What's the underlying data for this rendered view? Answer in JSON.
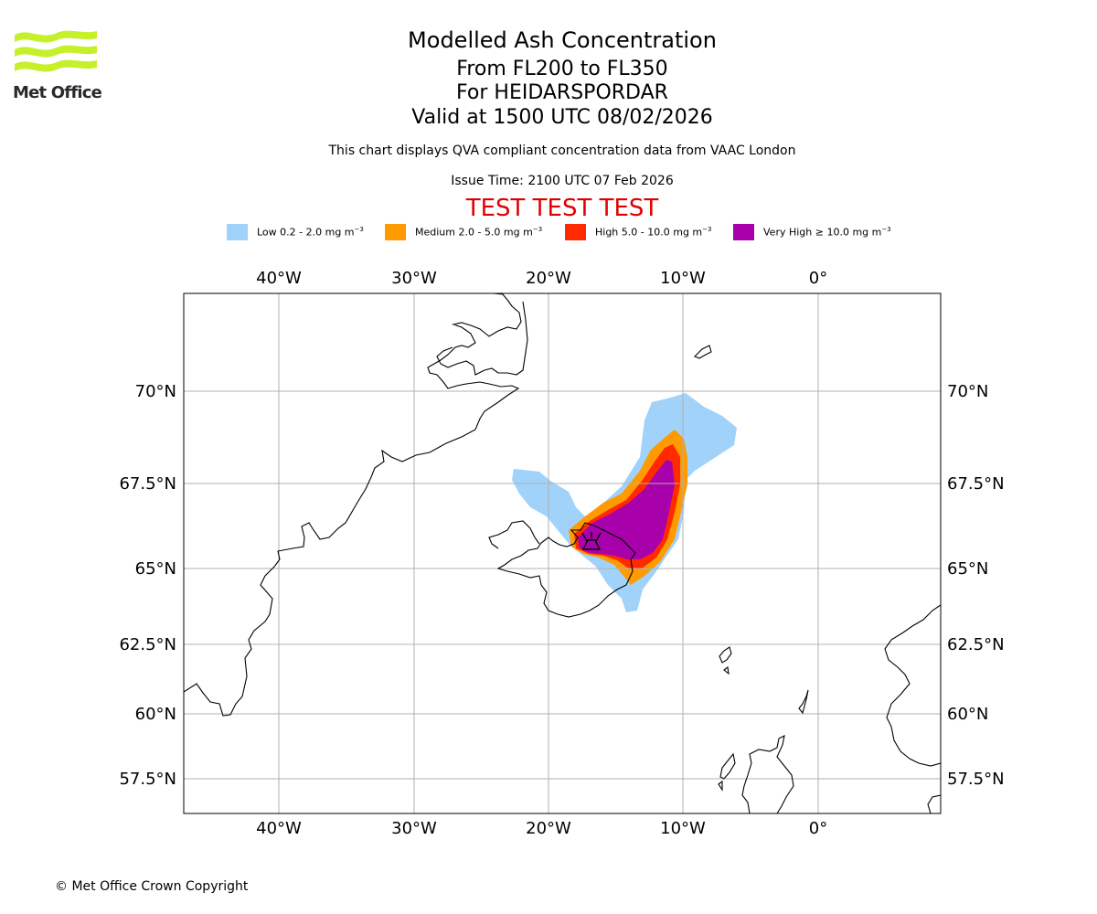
{
  "logo": {
    "text": "Met Office"
  },
  "title": {
    "line1": "Modelled Ash Concentration",
    "line2": "From FL200 to FL350",
    "line3": "For HEIDARSPORDAR",
    "line4": "Valid at 1500 UTC 08/02/2026"
  },
  "subtitle": "This chart displays QVA compliant concentration data from VAAC London",
  "issue_time": "Issue Time: 2100 UTC 07 Feb 2026",
  "test_banner": "TEST TEST TEST",
  "legend": [
    {
      "label": "Low 0.2 - 2.0 mg m",
      "color": "#a0d2fa"
    },
    {
      "label": "Medium 2.0 - 5.0 mg m",
      "color": "#ff9a00"
    },
    {
      "label": "High 5.0 - 10.0 mg m",
      "color": "#ff2a00"
    },
    {
      "label": "Very High  ≥  10.0 mg m",
      "color": "#a800aa"
    }
  ],
  "legend_unit_exp": "−3",
  "map": {
    "lon_labels": [
      "40°W",
      "30°W",
      "20°W",
      "10°W",
      "0°"
    ],
    "lat_labels": [
      "70°N",
      "67.5°N",
      "65°N",
      "62.5°N",
      "60°N",
      "57.5°N"
    ],
    "volcano_symbol": "volcano-icon"
  },
  "copyright": "© Met Office Crown Copyright"
}
